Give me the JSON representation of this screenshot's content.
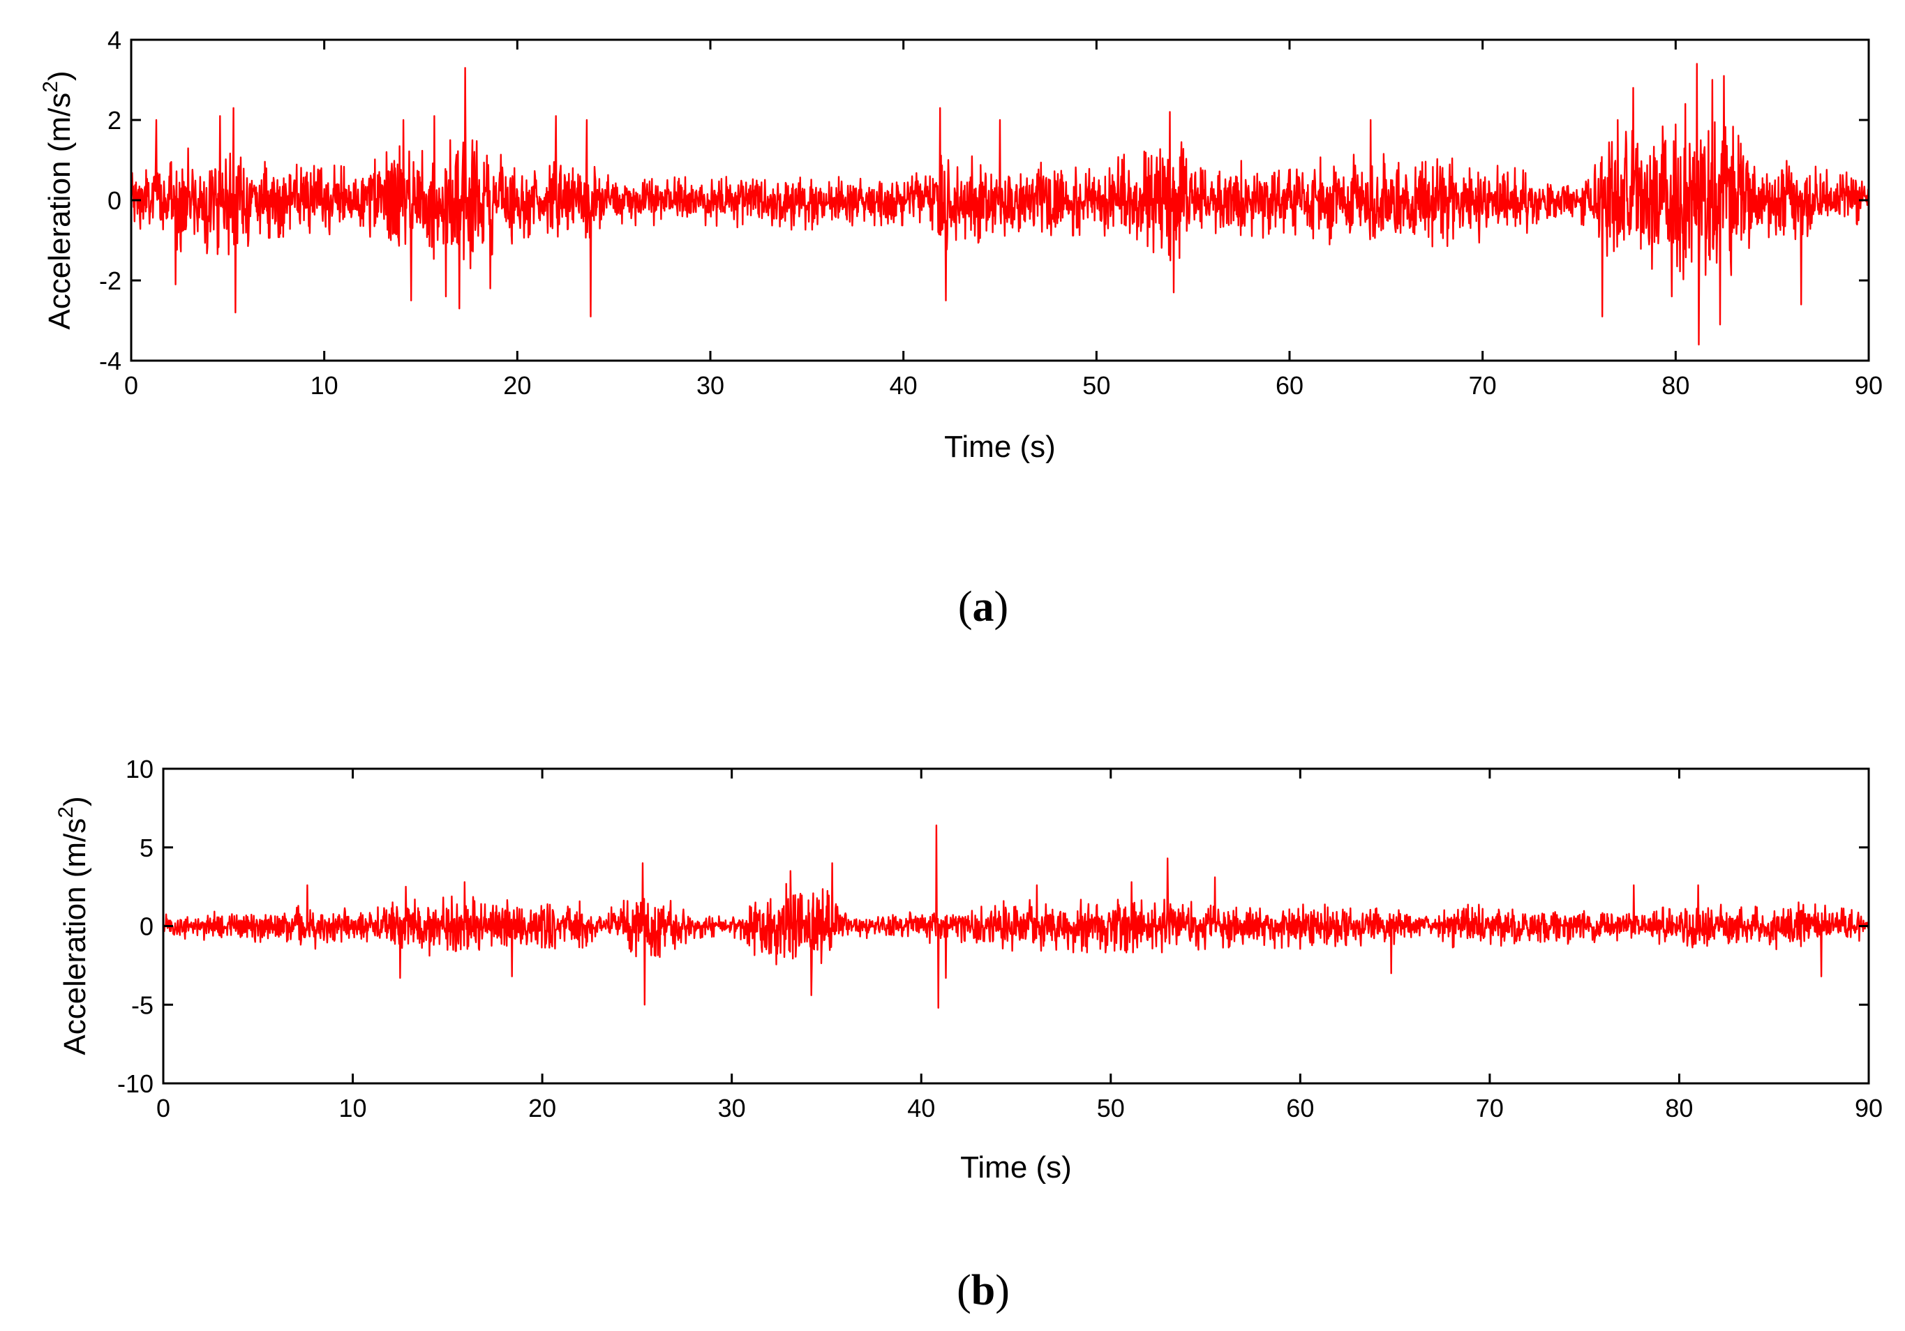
{
  "chart_data": [
    {
      "type": "line",
      "title": "",
      "caption_letter": "a",
      "xlabel": "Time (s)",
      "ylabel_main": "Acceleration (m/s",
      "ylabel_sup": "2",
      "ylabel_tail": ")",
      "xlim": [
        0,
        90
      ],
      "ylim": [
        -4,
        4
      ],
      "xticks": [
        0,
        10,
        20,
        30,
        40,
        50,
        60,
        70,
        80,
        90
      ],
      "yticks": [
        -4,
        -2,
        0,
        2,
        4
      ],
      "xtick_labels": [
        "0",
        "10",
        "20",
        "30",
        "40",
        "50",
        "60",
        "70",
        "80",
        "90"
      ],
      "ytick_labels": [
        "-4",
        "-2",
        "0",
        "2",
        "4"
      ],
      "grid": false,
      "line_color": "#ff0000",
      "series_envelope": {
        "x": [
          0,
          2,
          5,
          7,
          10,
          12,
          14,
          15.5,
          17.3,
          19,
          21,
          23.5,
          24.5,
          27,
          30,
          33,
          36,
          38,
          40,
          41.5,
          42,
          44,
          47,
          50,
          52,
          54,
          56,
          60,
          64,
          68,
          72,
          73,
          75,
          77,
          80,
          81,
          82.5,
          85,
          88,
          90
        ],
        "amplitude": [
          0.8,
          1.2,
          1.3,
          0.9,
          0.8,
          0.9,
          1.4,
          1.6,
          1.7,
          1.2,
          0.8,
          1.1,
          0.6,
          0.6,
          0.6,
          0.7,
          0.7,
          0.6,
          0.6,
          0.7,
          1.2,
          1.0,
          0.9,
          0.8,
          1.2,
          1.5,
          0.9,
          1.0,
          1.1,
          1.1,
          0.9,
          0.5,
          0.6,
          1.6,
          1.8,
          2.0,
          1.9,
          1.1,
          0.7,
          0.7
        ]
      },
      "spikes": [
        {
          "x": 1.3,
          "y": 2.0
        },
        {
          "x": 2.3,
          "y": -2.1
        },
        {
          "x": 4.6,
          "y": 2.1
        },
        {
          "x": 5.3,
          "y": 2.3
        },
        {
          "x": 5.4,
          "y": -2.8
        },
        {
          "x": 14.1,
          "y": 2.0
        },
        {
          "x": 14.5,
          "y": -2.5
        },
        {
          "x": 15.7,
          "y": 2.1
        },
        {
          "x": 16.3,
          "y": -2.4
        },
        {
          "x": 17.3,
          "y": 3.3
        },
        {
          "x": 17.0,
          "y": -2.7
        },
        {
          "x": 18.6,
          "y": -2.2
        },
        {
          "x": 22.0,
          "y": 2.1
        },
        {
          "x": 23.6,
          "y": 2.0
        },
        {
          "x": 23.8,
          "y": -2.9
        },
        {
          "x": 41.9,
          "y": 2.3
        },
        {
          "x": 42.2,
          "y": -2.5
        },
        {
          "x": 45.0,
          "y": 2.0
        },
        {
          "x": 53.8,
          "y": 2.2
        },
        {
          "x": 54.0,
          "y": -2.3
        },
        {
          "x": 64.2,
          "y": 2.0
        },
        {
          "x": 76.2,
          "y": -2.9
        },
        {
          "x": 77.0,
          "y": 2.0
        },
        {
          "x": 77.8,
          "y": 2.8
        },
        {
          "x": 79.8,
          "y": -2.4
        },
        {
          "x": 80.5,
          "y": 2.4
        },
        {
          "x": 81.1,
          "y": 3.4
        },
        {
          "x": 81.2,
          "y": -3.6
        },
        {
          "x": 81.9,
          "y": 3.0
        },
        {
          "x": 82.3,
          "y": -3.1
        },
        {
          "x": 82.5,
          "y": 3.1
        },
        {
          "x": 86.5,
          "y": -2.6
        }
      ]
    },
    {
      "type": "line",
      "title": "",
      "caption_letter": "b",
      "xlabel": "Time (s)",
      "ylabel_main": "Acceleration (m/s",
      "ylabel_sup": "2",
      "ylabel_tail": ")",
      "xlim": [
        0,
        90
      ],
      "ylim": [
        -10,
        10
      ],
      "xticks": [
        0,
        10,
        20,
        30,
        40,
        50,
        60,
        70,
        80,
        90
      ],
      "yticks": [
        -10,
        -5,
        0,
        5,
        10
      ],
      "xtick_labels": [
        "0",
        "10",
        "20",
        "30",
        "40",
        "50",
        "60",
        "70",
        "80",
        "90"
      ],
      "ytick_labels": [
        "-10",
        "-5",
        "0",
        "5",
        "10"
      ],
      "grid": false,
      "line_color": "#ff0000",
      "series_envelope": {
        "x": [
          0,
          3,
          6,
          8,
          10,
          12,
          13,
          16,
          18,
          20,
          22,
          23,
          24,
          26,
          28,
          30,
          31,
          33,
          35,
          36,
          38,
          40,
          41,
          42,
          44,
          46,
          48,
          50,
          53,
          56,
          60,
          63,
          65,
          66.5,
          68,
          72,
          75,
          78,
          80,
          84,
          86,
          88,
          90
        ],
        "amplitude": [
          0.7,
          0.9,
          1.0,
          1.4,
          1.0,
          1.4,
          1.8,
          1.8,
          1.6,
          1.3,
          1.5,
          0.6,
          1.7,
          2.0,
          0.8,
          0.5,
          2.0,
          2.6,
          2.2,
          0.8,
          0.7,
          0.9,
          1.2,
          1.0,
          1.5,
          1.6,
          1.6,
          1.6,
          1.6,
          1.3,
          1.4,
          1.2,
          1.1,
          0.5,
          1.3,
          1.3,
          1.0,
          0.9,
          1.3,
          1.3,
          1.5,
          1.2,
          0.8
        ]
      },
      "spikes": [
        {
          "x": 7.6,
          "y": 2.6
        },
        {
          "x": 12.5,
          "y": -3.3
        },
        {
          "x": 12.8,
          "y": 2.5
        },
        {
          "x": 15.9,
          "y": 2.8
        },
        {
          "x": 18.4,
          "y": -3.2
        },
        {
          "x": 25.3,
          "y": 4.0
        },
        {
          "x": 25.4,
          "y": -5.0
        },
        {
          "x": 33.1,
          "y": 3.5
        },
        {
          "x": 34.2,
          "y": -4.4
        },
        {
          "x": 35.3,
          "y": 4.0
        },
        {
          "x": 40.8,
          "y": 6.4
        },
        {
          "x": 40.9,
          "y": -5.2
        },
        {
          "x": 41.3,
          "y": -3.3
        },
        {
          "x": 46.1,
          "y": 2.6
        },
        {
          "x": 51.1,
          "y": 2.8
        },
        {
          "x": 53.0,
          "y": 4.3
        },
        {
          "x": 55.5,
          "y": 3.1
        },
        {
          "x": 64.8,
          "y": -3.0
        },
        {
          "x": 77.6,
          "y": 2.6
        },
        {
          "x": 81.0,
          "y": 2.6
        },
        {
          "x": 87.5,
          "y": -3.2
        }
      ]
    }
  ]
}
